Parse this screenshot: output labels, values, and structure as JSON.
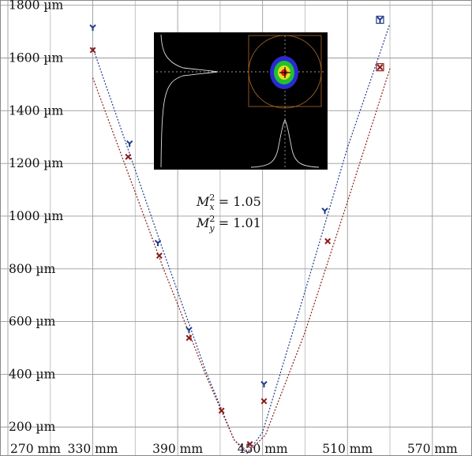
{
  "chart_data": {
    "type": "scatter",
    "title": "",
    "xlabel": "",
    "ylabel": "",
    "x_unit": "mm",
    "y_unit": "µm",
    "xlim": [
      270,
      598
    ],
    "ylim": [
      90,
      1820
    ],
    "grid": true,
    "x_ticks": [
      {
        "value": 270,
        "label": "270 mm"
      },
      {
        "value": 330,
        "label": "330 mm"
      },
      {
        "value": 390,
        "label": "390 mm"
      },
      {
        "value": 450,
        "label": "450 mm"
      },
      {
        "value": 510,
        "label": "510 mm"
      },
      {
        "value": 570,
        "label": "570 mm"
      }
    ],
    "y_ticks": [
      {
        "value": 200,
        "label": "200 µm"
      },
      {
        "value": 400,
        "label": "400 µm"
      },
      {
        "value": 600,
        "label": "600 µm"
      },
      {
        "value": 800,
        "label": "800 µm"
      },
      {
        "value": 1000,
        "label": "1000 µm"
      },
      {
        "value": 1200,
        "label": "1200 µm"
      },
      {
        "value": 1400,
        "label": "1400 µm"
      },
      {
        "value": 1600,
        "label": "1600 µm"
      },
      {
        "value": 1800,
        "label": "1800 µm"
      }
    ],
    "series": [
      {
        "color": "#1f3a8a",
        "marker": "y",
        "points": [
          {
            "x": 330,
            "y": 1715
          },
          {
            "x": 356,
            "y": 1275
          },
          {
            "x": 376,
            "y": 898
          },
          {
            "x": 398,
            "y": 568
          },
          {
            "x": 451,
            "y": 362
          },
          {
            "x": 494,
            "y": 1020
          },
          {
            "x": 533,
            "y": 1745
          }
        ],
        "fit": [
          {
            "x": 330,
            "y": 1640
          },
          {
            "x": 380,
            "y": 865
          },
          {
            "x": 410,
            "y": 410
          },
          {
            "x": 430,
            "y": 150
          },
          {
            "x": 439,
            "y": 100
          },
          {
            "x": 450,
            "y": 180
          },
          {
            "x": 480,
            "y": 715
          },
          {
            "x": 510,
            "y": 1260
          },
          {
            "x": 540,
            "y": 1730
          }
        ]
      },
      {
        "color": "#8b1a1a",
        "marker": "x",
        "points": [
          {
            "x": 330,
            "y": 1630
          },
          {
            "x": 355,
            "y": 1225
          },
          {
            "x": 377,
            "y": 850
          },
          {
            "x": 398,
            "y": 538
          },
          {
            "x": 421,
            "y": 262
          },
          {
            "x": 441,
            "y": 135
          },
          {
            "x": 451,
            "y": 298
          },
          {
            "x": 496,
            "y": 905
          },
          {
            "x": 533,
            "y": 1565
          }
        ],
        "fit": [
          {
            "x": 330,
            "y": 1525
          },
          {
            "x": 380,
            "y": 800
          },
          {
            "x": 410,
            "y": 395
          },
          {
            "x": 430,
            "y": 150
          },
          {
            "x": 440,
            "y": 105
          },
          {
            "x": 452,
            "y": 170
          },
          {
            "x": 480,
            "y": 560
          },
          {
            "x": 510,
            "y": 1055
          },
          {
            "x": 540,
            "y": 1560
          }
        ]
      }
    ],
    "annotations": [
      {
        "name": "M_x^2",
        "value": "1.05"
      },
      {
        "name": "M_y^2",
        "value": "1.01"
      }
    ]
  }
}
